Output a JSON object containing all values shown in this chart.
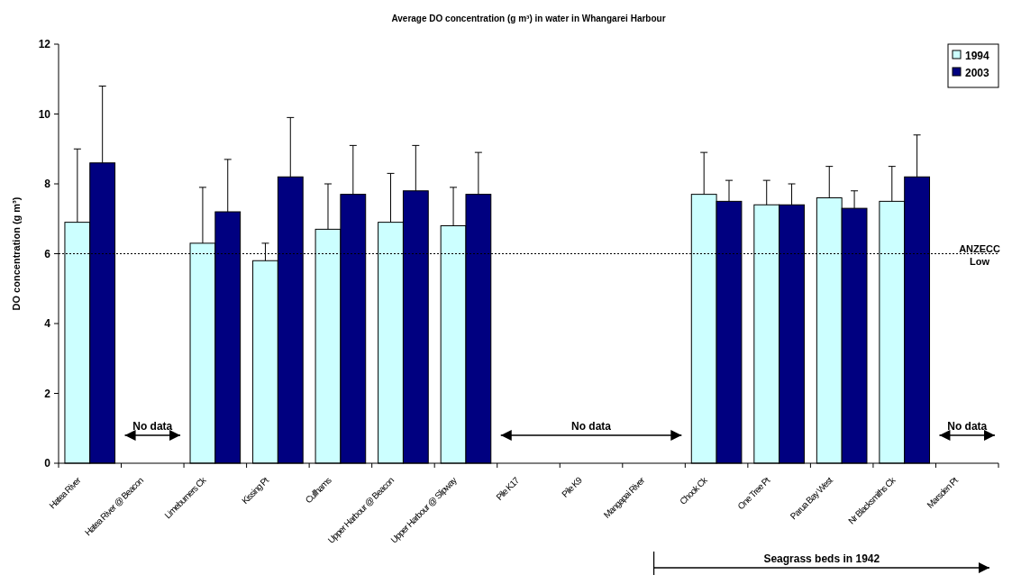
{
  "chart_data": {
    "type": "bar",
    "title": "Average DO concentration (g m³) in water in Whangarei Harbour",
    "ylabel": "DO concentration (g m³)",
    "categories": [
      "Hatea River",
      "Hatea River @ Beacon",
      "Limeburners Ck",
      "Kissing Pt",
      "Cullhams",
      "Upper Harbour @ Beacon",
      "Upper Harbour @ Slipway",
      "Pile K17",
      "Pile K9",
      "Mangapai River",
      "Chook Ck",
      "One Tree Pt",
      "Parua Bay West",
      "Nr Blacksmiths Ck",
      "Marsden Pt"
    ],
    "series": [
      {
        "name": "1994",
        "color": "#ccffff",
        "values": [
          6.9,
          null,
          6.3,
          5.8,
          6.7,
          6.9,
          6.8,
          null,
          null,
          null,
          7.7,
          7.4,
          7.6,
          7.5,
          null
        ],
        "errors": [
          [
            6.9,
            9.0
          ],
          null,
          [
            6.3,
            7.9
          ],
          [
            5.8,
            6.3
          ],
          [
            6.7,
            8.0
          ],
          [
            6.9,
            8.3
          ],
          [
            6.8,
            7.9
          ],
          null,
          null,
          null,
          [
            7.7,
            8.9
          ],
          [
            7.4,
            8.1
          ],
          [
            7.6,
            8.5
          ],
          [
            7.5,
            8.5
          ],
          null
        ]
      },
      {
        "name": "2003",
        "color": "#000080",
        "values": [
          8.6,
          null,
          7.2,
          8.2,
          7.7,
          7.8,
          7.7,
          null,
          null,
          null,
          7.5,
          7.4,
          7.3,
          8.2,
          null
        ],
        "errors": [
          [
            8.6,
            10.8
          ],
          null,
          [
            7.2,
            8.7
          ],
          [
            8.2,
            9.9
          ],
          [
            7.7,
            9.1
          ],
          [
            7.8,
            9.1
          ],
          [
            7.7,
            8.9
          ],
          null,
          null,
          null,
          [
            7.5,
            8.1
          ],
          [
            7.4,
            8.0
          ],
          [
            7.3,
            7.8
          ],
          [
            8.2,
            9.4
          ],
          null
        ]
      }
    ],
    "ylim": [
      0,
      12
    ],
    "yticks": [
      0,
      2,
      4,
      6,
      8,
      10,
      12
    ],
    "grid": false,
    "legend": "top right",
    "ref_lines": [
      {
        "axis": "y",
        "value": 6,
        "label": "ANZECC Low",
        "line_style": "dotted",
        "color": "#000000"
      }
    ],
    "annotations": [
      "No data",
      "No data",
      "No data",
      "Seagrass beds in 1942"
    ]
  }
}
